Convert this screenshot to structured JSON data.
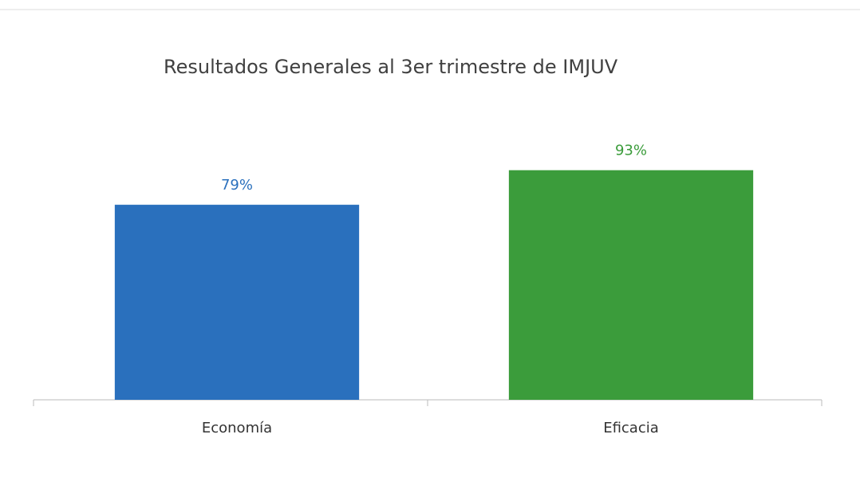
{
  "chart_data": {
    "type": "bar",
    "title": "Resultados Generales al 3er trimestre de IMJUV",
    "categories": [
      "Economía",
      "Eficacia"
    ],
    "values": [
      79,
      93
    ],
    "value_labels": [
      "79%",
      "93%"
    ],
    "colors": [
      "#2a70bd",
      "#3b9c3b"
    ],
    "ylim": [
      0,
      100
    ]
  }
}
